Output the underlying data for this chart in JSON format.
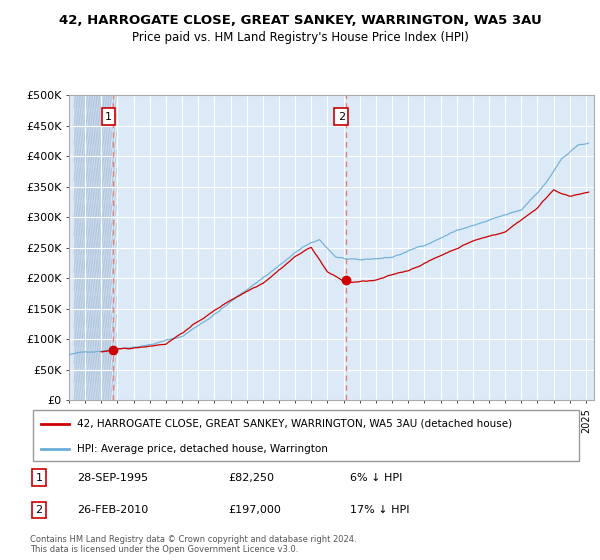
{
  "title": "42, HARROGATE CLOSE, GREAT SANKEY, WARRINGTON, WA5 3AU",
  "subtitle": "Price paid vs. HM Land Registry's House Price Index (HPI)",
  "ylim": [
    0,
    500000
  ],
  "yticks": [
    0,
    50000,
    100000,
    150000,
    200000,
    250000,
    300000,
    350000,
    400000,
    450000,
    500000
  ],
  "ytick_labels": [
    "£0",
    "£50K",
    "£100K",
    "£150K",
    "£200K",
    "£250K",
    "£300K",
    "£350K",
    "£400K",
    "£450K",
    "£500K"
  ],
  "background_color": "#dce9f7",
  "hatch_color": "#c8d8ea",
  "grid_color": "#ffffff",
  "sale1_date": 1995.75,
  "sale1_price": 82250,
  "sale1_label": "1",
  "sale2_date": 2010.15,
  "sale2_price": 197000,
  "sale2_label": "2",
  "legend_line1": "42, HARROGATE CLOSE, GREAT SANKEY, WARRINGTON, WA5 3AU (detached house)",
  "legend_line2": "HPI: Average price, detached house, Warrington",
  "table_row1": [
    "1",
    "28-SEP-1995",
    "£82,250",
    "6% ↓ HPI"
  ],
  "table_row2": [
    "2",
    "26-FEB-2010",
    "£197,000",
    "17% ↓ HPI"
  ],
  "footer": "Contains HM Land Registry data © Crown copyright and database right 2024.\nThis data is licensed under the Open Government Licence v3.0.",
  "hpi_color": "#6aaed6",
  "price_color": "#cc0000",
  "vline_color": "#cc0000"
}
